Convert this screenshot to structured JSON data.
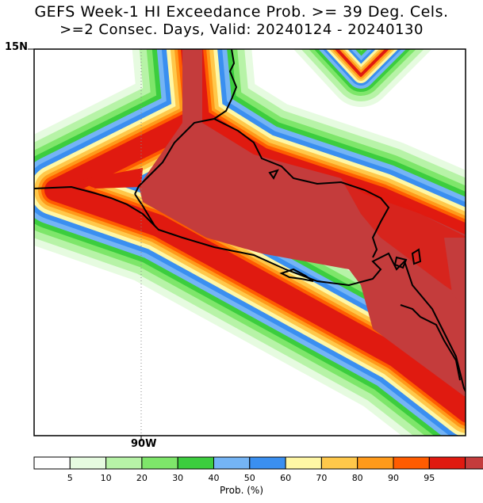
{
  "title": {
    "line1": "GEFS Week-1 HI Exceedance Prob. >= 39 Deg. Cels.",
    "line2": ">=2 Consec. Days, Valid: 20240124 - 20240130"
  },
  "axes": {
    "lat_label": "15N",
    "lon_label": "90W"
  },
  "colorbar": {
    "unit_label": "Prob. (%)",
    "ticks": [
      "5",
      "10",
      "20",
      "30",
      "40",
      "50",
      "60",
      "70",
      "80",
      "90",
      "95"
    ],
    "colors": [
      "#ffffff",
      "#e6fbe0",
      "#b7f3a7",
      "#7ee66a",
      "#3ccd3e",
      "#74b4f5",
      "#3a8ff0",
      "#fff7a5",
      "#ffc84a",
      "#ff9a1a",
      "#ff5c00",
      "#e01a10",
      "#c43c3c"
    ]
  },
  "map": {
    "description_colors": {
      "band_edge": "#e6fbe0",
      "core": "#c43c3c"
    }
  }
}
